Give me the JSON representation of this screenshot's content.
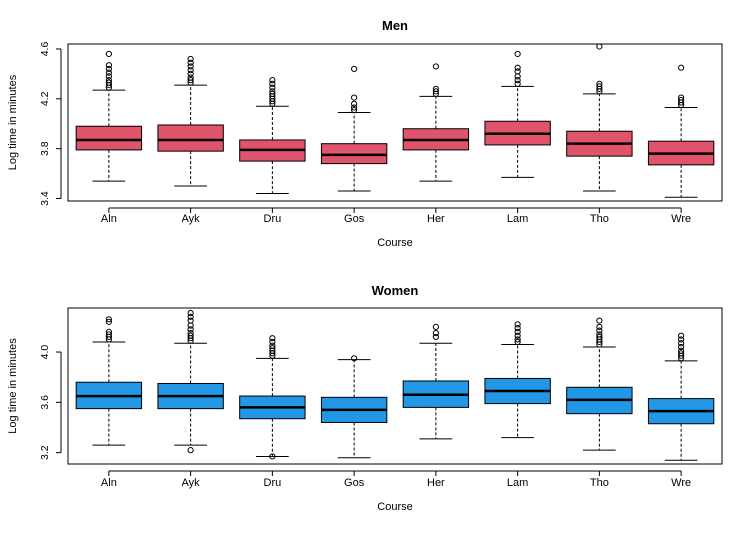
{
  "chart_data": [
    {
      "type": "boxplot",
      "title": "Men",
      "xlabel": "Course",
      "ylabel": "Log time in minutes",
      "ylim": [
        3.38,
        4.64
      ],
      "yticks": [
        3.4,
        3.8,
        4.2,
        4.6
      ],
      "fill": "#DF536B",
      "categories": [
        "Aln",
        "Ayk",
        "Dru",
        "Gos",
        "Her",
        "Lam",
        "Tho",
        "Wre"
      ],
      "boxes": [
        {
          "whisker_low": 3.54,
          "q1": 3.79,
          "median": 3.87,
          "q3": 3.98,
          "whisker_high": 4.27,
          "outliers": [
            4.29,
            4.31,
            4.33,
            4.35,
            4.38,
            4.41,
            4.44,
            4.47,
            4.56
          ]
        },
        {
          "whisker_low": 3.5,
          "q1": 3.78,
          "median": 3.87,
          "q3": 3.99,
          "whisker_high": 4.31,
          "outliers": [
            4.33,
            4.35,
            4.37,
            4.4,
            4.43,
            4.46,
            4.49,
            4.52
          ]
        },
        {
          "whisker_low": 3.44,
          "q1": 3.7,
          "median": 3.79,
          "q3": 3.87,
          "whisker_high": 4.14,
          "outliers": [
            4.16,
            4.18,
            4.2,
            4.22,
            4.24,
            4.26,
            4.29,
            4.32,
            4.35
          ]
        },
        {
          "whisker_low": 3.46,
          "q1": 3.68,
          "median": 3.75,
          "q3": 3.84,
          "whisker_high": 4.09,
          "outliers": [
            4.11,
            4.13,
            4.16,
            4.21,
            4.44
          ]
        },
        {
          "whisker_low": 3.54,
          "q1": 3.79,
          "median": 3.87,
          "q3": 3.96,
          "whisker_high": 4.22,
          "outliers": [
            4.24,
            4.26,
            4.28,
            4.46
          ]
        },
        {
          "whisker_low": 3.57,
          "q1": 3.83,
          "median": 3.92,
          "q3": 4.02,
          "whisker_high": 4.3,
          "outliers": [
            4.32,
            4.35,
            4.38,
            4.42,
            4.45,
            4.56
          ]
        },
        {
          "whisker_low": 3.46,
          "q1": 3.74,
          "median": 3.84,
          "q3": 3.94,
          "whisker_high": 4.24,
          "outliers": [
            4.26,
            4.28,
            4.3,
            4.32,
            4.62
          ]
        },
        {
          "whisker_low": 3.41,
          "q1": 3.67,
          "median": 3.76,
          "q3": 3.86,
          "whisker_high": 4.13,
          "outliers": [
            4.15,
            4.17,
            4.19,
            4.21,
            4.45
          ]
        }
      ]
    },
    {
      "type": "boxplot",
      "title": "Women",
      "xlabel": "Course",
      "ylabel": "Log time in minutes",
      "ylim": [
        3.11,
        4.35
      ],
      "yticks": [
        3.2,
        3.6,
        4.0
      ],
      "fill": "#2297E6",
      "categories": [
        "Aln",
        "Ayk",
        "Dru",
        "Gos",
        "Her",
        "Lam",
        "Tho",
        "Wre"
      ],
      "boxes": [
        {
          "whisker_low": 3.26,
          "q1": 3.55,
          "median": 3.65,
          "q3": 3.76,
          "whisker_high": 4.08,
          "outliers": [
            4.1,
            4.12,
            4.14,
            4.16,
            4.24,
            4.26
          ]
        },
        {
          "whisker_low": 3.26,
          "q1": 3.55,
          "median": 3.65,
          "q3": 3.75,
          "whisker_high": 4.07,
          "outliers": [
            3.22,
            4.09,
            4.11,
            4.13,
            4.15,
            4.18,
            4.21,
            4.25,
            4.28,
            4.31
          ]
        },
        {
          "whisker_low": 3.17,
          "q1": 3.47,
          "median": 3.56,
          "q3": 3.65,
          "whisker_high": 3.95,
          "outliers": [
            3.17,
            3.97,
            3.99,
            4.01,
            4.03,
            4.05,
            4.08,
            4.11
          ]
        },
        {
          "whisker_low": 3.16,
          "q1": 3.44,
          "median": 3.54,
          "q3": 3.64,
          "whisker_high": 3.94,
          "outliers": [
            3.95
          ]
        },
        {
          "whisker_low": 3.31,
          "q1": 3.56,
          "median": 3.66,
          "q3": 3.77,
          "whisker_high": 4.07,
          "outliers": [
            4.12,
            4.15,
            4.2
          ]
        },
        {
          "whisker_low": 3.32,
          "q1": 3.59,
          "median": 3.69,
          "q3": 3.79,
          "whisker_high": 4.06,
          "outliers": [
            4.08,
            4.1,
            4.13,
            4.16,
            4.19,
            4.22
          ]
        },
        {
          "whisker_low": 3.22,
          "q1": 3.51,
          "median": 3.62,
          "q3": 3.72,
          "whisker_high": 4.04,
          "outliers": [
            4.06,
            4.08,
            4.1,
            4.12,
            4.14,
            4.17,
            4.2,
            4.25
          ]
        },
        {
          "whisker_low": 3.14,
          "q1": 3.43,
          "median": 3.53,
          "q3": 3.63,
          "whisker_high": 3.93,
          "outliers": [
            3.95,
            3.97,
            3.99,
            4.01,
            4.04,
            4.07,
            4.1,
            4.13
          ]
        }
      ]
    }
  ]
}
